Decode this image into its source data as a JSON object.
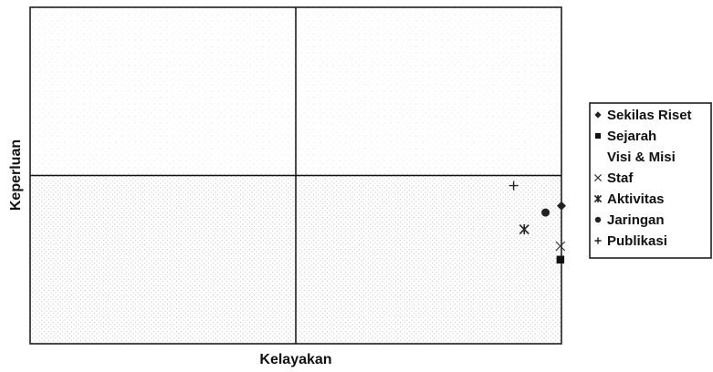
{
  "chart_data": {
    "type": "scatter",
    "title": "",
    "xlabel": "Kelayakan",
    "ylabel": "Keperluan",
    "xlim": [
      0,
      10
    ],
    "ylim": [
      0,
      10
    ],
    "quadrant_lines": {
      "x": 5,
      "y": 5
    },
    "grid": false,
    "legend_position": "right",
    "series": [
      {
        "name": "Sekilas Riset",
        "name_lines": [
          "Sekilas Riset"
        ],
        "marker": "diamond",
        "color": "#222222",
        "points": [
          [
            10.0,
            4.1
          ]
        ]
      },
      {
        "name": "Sejarah, Visi & Misi",
        "name_lines": [
          "Sejarah",
          "Visi & Misi"
        ],
        "marker": "square",
        "color": "#111111",
        "points": [
          [
            9.98,
            2.5
          ]
        ]
      },
      {
        "name": "Staf",
        "name_lines": [
          "Staf"
        ],
        "marker": "x-thin",
        "color": "#333333",
        "points": [
          [
            9.98,
            2.9
          ]
        ]
      },
      {
        "name": "Aktivitas",
        "name_lines": [
          "Aktivitas"
        ],
        "marker": "asterisk",
        "color": "#222222",
        "points": [
          [
            9.3,
            3.4
          ]
        ]
      },
      {
        "name": "Jaringan",
        "name_lines": [
          "Jaringan"
        ],
        "marker": "circle",
        "color": "#222222",
        "points": [
          [
            9.7,
            3.9
          ]
        ]
      },
      {
        "name": "Publikasi",
        "name_lines": [
          "Publikasi"
        ],
        "marker": "plus",
        "color": "#222222",
        "points": [
          [
            9.1,
            4.7
          ]
        ]
      }
    ]
  }
}
